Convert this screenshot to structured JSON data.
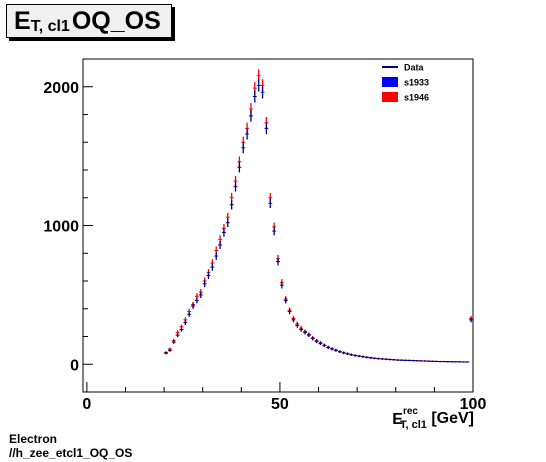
{
  "title": {
    "main": "E",
    "sub": "T, cl1",
    "rest": " OQ_OS"
  },
  "footer": {
    "line1": "Electron",
    "line2": "//h_zee_etcl1_OQ_OS"
  },
  "chart_data": {
    "type": "scatter",
    "title": "E_T, cl1 OQ_OS",
    "xlabel": "E^rec_T, cl1 [GeV]",
    "xlabel_parts": {
      "main": "E",
      "sup": "rec",
      "sub": "T, cl1",
      "unit": " [GeV]"
    },
    "ylabel": "",
    "xlim": [
      -1,
      100
    ],
    "ylim": [
      -200,
      2200
    ],
    "xticks": [
      0,
      50,
      100
    ],
    "yticks": [
      0,
      1000,
      2000
    ],
    "legend_position": "top-right",
    "legend": [
      {
        "name": "Data",
        "color": "#000080",
        "marker": "line"
      },
      {
        "name": "s1933",
        "color": "#0000ff",
        "marker": "box"
      },
      {
        "name": "s1946",
        "color": "#ff0000",
        "marker": "box"
      }
    ],
    "bin_width": 1,
    "x": [
      20.5,
      21.5,
      22.5,
      23.5,
      24.5,
      25.5,
      26.5,
      27.5,
      28.5,
      29.5,
      30.5,
      31.5,
      32.5,
      33.5,
      34.5,
      35.5,
      36.5,
      37.5,
      38.5,
      39.5,
      40.5,
      41.5,
      42.5,
      43.5,
      44.5,
      45.5,
      46.5,
      47.5,
      48.5,
      49.5,
      50.5,
      51.5,
      52.5,
      53.5,
      54.5,
      55.5,
      56.5,
      57.5,
      58.5,
      59.5,
      60.5,
      61.5,
      62.5,
      63.5,
      64.5,
      65.5,
      66.5,
      67.5,
      68.5,
      69.5,
      70.5,
      71.5,
      72.5,
      73.5,
      74.5,
      75.5,
      76.5,
      77.5,
      78.5,
      79.5,
      80.5,
      81.5,
      82.5,
      83.5,
      84.5,
      85.5,
      86.5,
      87.5,
      88.5,
      89.5,
      90.5,
      91.5,
      92.5,
      93.5,
      94.5,
      95.5,
      96.5,
      97.5,
      98.5,
      99.5
    ],
    "series": [
      {
        "name": "Data",
        "color": "#000080",
        "values": [
          80,
          100,
          160,
          210,
          250,
          300,
          360,
          420,
          460,
          500,
          580,
          640,
          700,
          780,
          860,
          950,
          1020,
          1150,
          1280,
          1420,
          1560,
          1660,
          1790,
          1930,
          2010,
          1960,
          1700,
          1160,
          960,
          740,
          570,
          460,
          380,
          320,
          280,
          250,
          230,
          210,
          185,
          165,
          150,
          135,
          120,
          110,
          100,
          90,
          82,
          75,
          68,
          62,
          58,
          54,
          50,
          46,
          43,
          40,
          38,
          36,
          34,
          32,
          30,
          29,
          28,
          27,
          26,
          25,
          24,
          23,
          22,
          21,
          20,
          19,
          19,
          18,
          18,
          17,
          17,
          16,
          16,
          320
        ]
      },
      {
        "name": "s1946",
        "color": "#ff0000",
        "values": [
          85,
          110,
          170,
          230,
          270,
          320,
          380,
          430,
          490,
          520,
          600,
          660,
          730,
          820,
          900,
          980,
          1060,
          1200,
          1320,
          1460,
          1600,
          1700,
          1840,
          1990,
          2080,
          2010,
          1740,
          1200,
          990,
          760,
          590,
          470,
          390,
          330,
          290,
          260,
          235,
          215,
          190,
          170,
          155,
          138,
          124,
          112,
          102,
          92,
          84,
          77,
          70,
          64,
          60,
          55,
          51,
          47,
          44,
          41,
          39,
          37,
          35,
          33,
          31,
          30,
          29,
          28,
          27,
          26,
          25,
          24,
          23,
          22,
          21,
          20,
          20,
          19,
          19,
          18,
          18,
          17,
          17,
          330
        ]
      }
    ]
  }
}
